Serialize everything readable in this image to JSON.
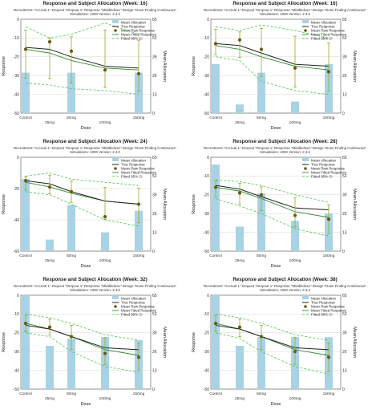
{
  "chart_data": [
    {
      "type": "bar",
      "title": "Response and Subject Allocation (Week: 16)",
      "subtitle": "Recruitment \"Accrual 1\" Dropout \"Dropout 1\" Response \"Middledose\" Design \"Dose Finding Continuous\"",
      "subtitle2": "Simulations: 1000 Version: 2.4.0",
      "xlabel": "Dose",
      "ylabel": "Response",
      "y2label": "Mean Allocation",
      "categories": [
        "Control",
        "25mg",
        "50mg",
        "100mg",
        "150mg"
      ],
      "x": [
        0,
        25,
        50,
        100,
        150
      ],
      "ylim": [
        -50,
        0
      ],
      "y2lim": [
        0,
        65
      ],
      "yticks": [
        -50,
        -40,
        -30,
        -20,
        -10,
        0
      ],
      "y2ticks": [
        0,
        13,
        26,
        39,
        52,
        65
      ],
      "legend": [
        "Mean Allocation",
        "True Response",
        "Mean Raw Response",
        "Mean Fitted Response",
        "Fitted 95% CI"
      ],
      "series": [
        {
          "name": "Mean Allocation",
          "values": [
            28,
            0,
            28,
            0,
            28
          ]
        },
        {
          "name": "True Response",
          "values": [
            -15,
            -16,
            -20,
            -25,
            -26
          ]
        },
        {
          "name": "Mean Raw Response",
          "values": [
            -16,
            -12,
            -17,
            -27,
            -29
          ]
        },
        {
          "name": "Mean Fitted Response",
          "values": [
            -16,
            -18,
            -22,
            -26,
            -27
          ]
        },
        {
          "name": "Fitted 95% CI Upper",
          "values": [
            -4,
            -10,
            -8,
            -2,
            -8
          ]
        },
        {
          "name": "Fitted 95% CI Lower",
          "values": [
            -34,
            -35,
            -37,
            -38,
            -40
          ]
        }
      ]
    },
    {
      "type": "bar",
      "title": "Response and Subject Allocation (Week: 16)",
      "subtitle": "Recruitment \"Accrual 1\" Dropout \"Dropout 1\" Response \"Middledose\" Design \"Dose Finding Continuous\"",
      "subtitle2": "Simulations: 1000 Version: 2.4.0",
      "xlabel": "Dose",
      "ylabel": "Response",
      "y2label": "Mean Allocation",
      "categories": [
        "Control",
        "25mg",
        "50mg",
        "100mg",
        "150mg"
      ],
      "x": [
        0,
        25,
        50,
        100,
        150
      ],
      "ylim": [
        -50,
        0
      ],
      "y2lim": [
        0,
        65
      ],
      "yticks": [
        -50,
        -40,
        -30,
        -20,
        -10,
        0
      ],
      "y2ticks": [
        0,
        13,
        26,
        39,
        52,
        65
      ],
      "legend": [
        "Mean Allocation",
        "True Response",
        "Mean Raw Response",
        "Mean Fitted Response",
        "Fitted 95% CI"
      ],
      "series": [
        {
          "name": "Mean Allocation",
          "values": [
            34,
            6,
            28,
            8,
            34
          ]
        },
        {
          "name": "True Response",
          "values": [
            -13,
            -14,
            -18,
            -24,
            -25
          ]
        },
        {
          "name": "Mean Raw Response",
          "values": [
            -13,
            -11,
            -16,
            -26,
            -28
          ]
        },
        {
          "name": "Mean Fitted Response",
          "values": [
            -14,
            -16,
            -20,
            -25,
            -27
          ]
        },
        {
          "name": "Fitted 95% CI Upper",
          "values": [
            -4,
            -6,
            -3,
            -6,
            -10
          ]
        },
        {
          "name": "Fitted 95% CI Lower",
          "values": [
            -20,
            -22,
            -33,
            -38,
            -40
          ]
        }
      ]
    },
    {
      "type": "bar",
      "title": "Response and Subject Allocation (Week: 24)",
      "subtitle": "Recruitment \"Accrual 1\" Dropout \"Dropout 1\" Response \"Middledose\" Design \"Dose Finding Continuous\"",
      "subtitle2": "Simulations: 1000 Version: 2.4.0",
      "xlabel": "Dose",
      "ylabel": "Response",
      "y2label": "Mean Allocation",
      "categories": [
        "Control",
        "25mg",
        "50mg",
        "100mg",
        "150mg"
      ],
      "x": [
        0,
        25,
        50,
        100,
        150
      ],
      "ylim": [
        -60,
        0
      ],
      "y2lim": [
        0,
        65
      ],
      "yticks": [
        -60,
        -40,
        -20,
        0
      ],
      "y2ticks": [
        0,
        13,
        26,
        39,
        52,
        65
      ],
      "legend": [
        "Mean Allocation",
        "True Response",
        "Mean Raw Response",
        "Mean Fitted Response",
        "Fitted 95% CI"
      ],
      "series": [
        {
          "name": "Mean Allocation",
          "values": [
            50,
            8,
            32,
            13,
            28
          ]
        },
        {
          "name": "True Response",
          "values": [
            -15,
            -17,
            -22,
            -28,
            -30
          ]
        },
        {
          "name": "Mean Raw Response",
          "values": [
            -15,
            -19,
            -22,
            -38,
            -30
          ]
        },
        {
          "name": "Mean Fitted Response",
          "values": [
            -16,
            -19,
            -23,
            -28,
            -30
          ]
        },
        {
          "name": "Fitted 95% CI Upper",
          "values": [
            -12,
            -10,
            -14,
            -16,
            -18
          ]
        },
        {
          "name": "Fitted 95% CI Lower",
          "values": [
            -22,
            -24,
            -30,
            -40,
            -44
          ]
        }
      ]
    },
    {
      "type": "bar",
      "title": "Response and Subject Allocation (Week: 28)",
      "subtitle": "Recruitment \"Accrual 1\" Dropout \"Dropout 1\" Response \"Middledose\" Design \"Dose Finding Continuous\"",
      "subtitle2": "Simulations: 1000 Version: 2.4.2",
      "xlabel": "Dose",
      "ylabel": "Response",
      "y2label": "Mean Allocation",
      "categories": [
        "Control",
        "25mg",
        "50mg",
        "100mg",
        "150mg"
      ],
      "x": [
        0,
        25,
        50,
        100,
        150
      ],
      "ylim": [
        -50,
        0
      ],
      "y2lim": [
        0,
        65
      ],
      "yticks": [
        -50,
        -40,
        -30,
        -20,
        -10,
        0
      ],
      "y2ticks": [
        0,
        13,
        26,
        39,
        52,
        65
      ],
      "legend": [
        "Mean Allocation",
        "True Response",
        "Mean Raw Response",
        "Mean Fitted Response",
        "Fitted 95% CI"
      ],
      "series": [
        {
          "name": "Mean Allocation",
          "values": [
            60,
            17,
            40,
            21,
            26
          ]
        },
        {
          "name": "True Response",
          "values": [
            -15,
            -17,
            -21,
            -27,
            -28
          ]
        },
        {
          "name": "Mean Raw Response",
          "values": [
            -16,
            -19,
            -20,
            -31,
            -33
          ]
        },
        {
          "name": "Mean Fitted Response",
          "values": [
            -16,
            -18,
            -22,
            -29,
            -32
          ]
        },
        {
          "name": "Fitted 95% CI Upper",
          "values": [
            -12,
            -13,
            -15,
            -20,
            -24
          ]
        },
        {
          "name": "Fitted 95% CI Lower",
          "values": [
            -22,
            -26,
            -30,
            -38,
            -42
          ]
        }
      ]
    },
    {
      "type": "bar",
      "title": "Response and Subject Allocation (Week: 32)",
      "subtitle": "Recruitment \"Accrual 1\" Dropout \"Dropout 1\" Response \"Middledose\" Design \"Dose Finding Continuous\"",
      "subtitle2": "Simulations: 1000 Version: 2.4.0",
      "xlabel": "Dose",
      "ylabel": "Response",
      "y2label": "Mean Allocation",
      "categories": [
        "Control",
        "25mg",
        "50mg",
        "100mg",
        "150mg"
      ],
      "x": [
        0,
        25,
        50,
        100,
        150
      ],
      "ylim": [
        -50,
        0
      ],
      "y2lim": [
        0,
        65
      ],
      "yticks": [
        -50,
        -40,
        -30,
        -20,
        -10,
        0
      ],
      "y2ticks": [
        0,
        13,
        26,
        39,
        52,
        65
      ],
      "legend": [
        "Mean Allocation",
        "True Response",
        "Mean Raw Response",
        "Mean Fitted Response",
        "Fitted 95% CI"
      ],
      "series": [
        {
          "name": "Mean Allocation",
          "values": [
            65,
            30,
            35,
            36,
            34
          ]
        },
        {
          "name": "True Response",
          "values": [
            -16,
            -18,
            -22,
            -28,
            -29
          ]
        },
        {
          "name": "Mean Raw Response",
          "values": [
            -15,
            -17,
            -22,
            -31,
            -33
          ]
        },
        {
          "name": "Mean Fitted Response",
          "values": [
            -15,
            -18,
            -22,
            -29,
            -32
          ]
        },
        {
          "name": "Fitted 95% CI Upper",
          "values": [
            -10,
            -12,
            -15,
            -21,
            -24
          ]
        },
        {
          "name": "Fitted 95% CI Lower",
          "values": [
            -20,
            -22,
            -30,
            -38,
            -41
          ]
        }
      ]
    },
    {
      "type": "bar",
      "title": "Response and Subject Allocation (Week: 38)",
      "subtitle": "Recruitment \"Accrual 1\" Dropout \"Dropout 1\" Response \"Middledose\" Design \"Dose Finding Continuous\"",
      "subtitle2": "Simulations: 1000 Version: 2.4.2",
      "xlabel": "Dose",
      "ylabel": "Response",
      "y2label": "Mean Allocation",
      "categories": [
        "Control",
        "25mg",
        "50mg",
        "100mg",
        "150mg"
      ],
      "x": [
        0,
        25,
        50,
        100,
        150
      ],
      "ylim": [
        -50,
        0
      ],
      "y2lim": [
        0,
        65
      ],
      "yticks": [
        -50,
        -40,
        -30,
        -20,
        -10,
        0
      ],
      "y2ticks": [
        0,
        13,
        26,
        39,
        52,
        65
      ],
      "legend": [
        "Mean Allocation",
        "True Response",
        "Mean Raw Response",
        "Mean Fitted Response",
        "Fitted 95% CI"
      ],
      "series": [
        {
          "name": "Mean Allocation",
          "values": [
            65,
            30,
            36,
            36,
            36
          ]
        },
        {
          "name": "True Response",
          "values": [
            -16,
            -18,
            -22,
            -28,
            -29
          ]
        },
        {
          "name": "Mean Raw Response",
          "values": [
            -15,
            -17,
            -22,
            -30,
            -33
          ]
        },
        {
          "name": "Mean Fitted Response",
          "values": [
            -15,
            -18,
            -22,
            -29,
            -32
          ]
        },
        {
          "name": "Fitted 95% CI Upper",
          "values": [
            -10,
            -12,
            -15,
            -21,
            -24
          ]
        },
        {
          "name": "Fitted 95% CI Lower",
          "values": [
            -20,
            -23,
            -30,
            -38,
            -42
          ]
        }
      ]
    }
  ],
  "colors": {
    "bar": "#a9d3e4",
    "true_response": "#222222",
    "raw_point": "#6b5a12",
    "raw_error": "#9aa82b",
    "fitted": "#2e8b2e",
    "ci": "#4cc74c",
    "grid": "#d7d7d7"
  }
}
